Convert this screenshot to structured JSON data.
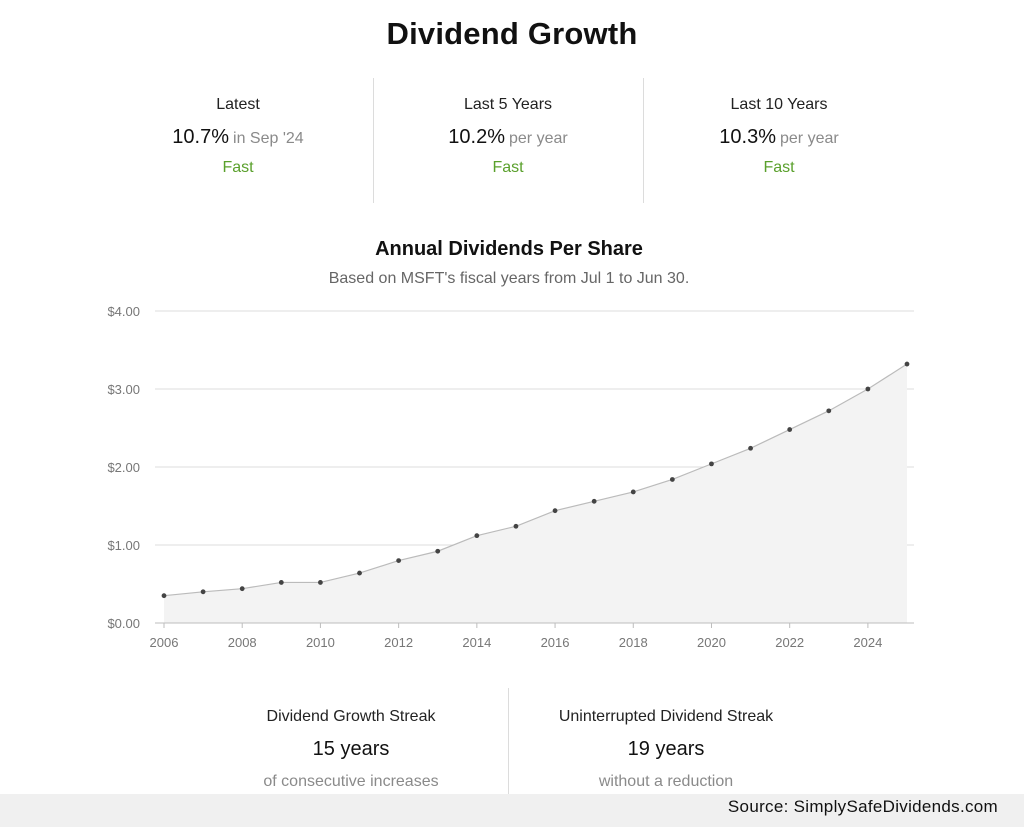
{
  "page": {
    "title": "Dividend Growth"
  },
  "stats": [
    {
      "label": "Latest",
      "value": "10.7%",
      "suffix": "in Sep '24",
      "rating": "Fast"
    },
    {
      "label": "Last 5 Years",
      "value": "10.2%",
      "suffix": "per year",
      "rating": "Fast"
    },
    {
      "label": "Last 10 Years",
      "value": "10.3%",
      "suffix": "per year",
      "rating": "Fast"
    }
  ],
  "streaks": [
    {
      "label": "Dividend Growth Streak",
      "value": "15 years",
      "note": "of consecutive increases"
    },
    {
      "label": "Uninterrupted Dividend Streak",
      "value": "19 years",
      "note": "without a reduction"
    }
  ],
  "source": "Source:  SimplySafeDividends.com",
  "colors": {
    "accent_green": "#5aa02c",
    "line": "#bbbbbb",
    "area": "#f3f3f3",
    "point": "#444444",
    "grid": "#dddddd"
  },
  "chart_data": {
    "type": "area",
    "title": "Annual Dividends Per Share",
    "subtitle": "Based on MSFT's fiscal years from Jul 1 to Jun 30.",
    "xlabel": "",
    "ylabel": "",
    "x": [
      2006,
      2007,
      2008,
      2009,
      2010,
      2011,
      2012,
      2013,
      2014,
      2015,
      2016,
      2017,
      2018,
      2019,
      2020,
      2021,
      2022,
      2023,
      2024,
      2025
    ],
    "series": [
      {
        "values": [
          0.35,
          0.4,
          0.44,
          0.52,
          0.52,
          0.64,
          0.8,
          0.92,
          1.12,
          1.24,
          1.44,
          1.56,
          1.68,
          1.84,
          2.04,
          2.24,
          2.48,
          2.72,
          3.0,
          3.32
        ]
      }
    ],
    "xlim": [
      2006,
      2025
    ],
    "ylim": [
      0,
      4
    ],
    "x_ticks": [
      "2006",
      "2008",
      "2010",
      "2012",
      "2014",
      "2016",
      "2018",
      "2020",
      "2022",
      "2024"
    ],
    "y_ticks": [
      "$0.00",
      "$1.00",
      "$2.00",
      "$3.00",
      "$4.00"
    ],
    "grid": true,
    "legend": "none"
  }
}
